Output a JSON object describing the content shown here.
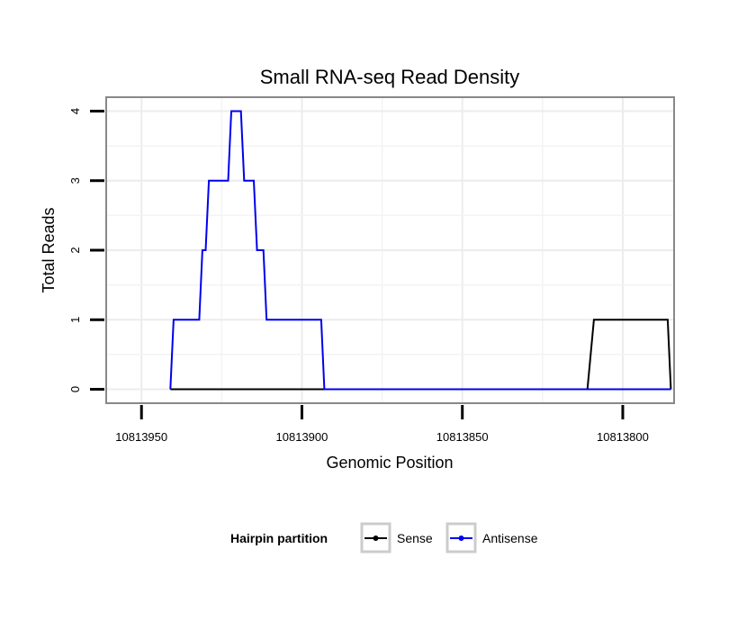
{
  "chart_data": {
    "type": "line",
    "title": "Small RNA-seq Read Density",
    "xlabel": "Genomic Position",
    "ylabel": "Total Reads",
    "xlim": [
      10813961,
      10813784
    ],
    "ylim": [
      -0.2,
      4.2
    ],
    "x_reversed": true,
    "x_ticks": [
      10813950,
      10813900,
      10813850,
      10813800
    ],
    "x_tick_labels": [
      "10813950",
      "10813900",
      "10813850",
      "10813800"
    ],
    "y_ticks": [
      0,
      1,
      2,
      3,
      4
    ],
    "y_tick_labels": [
      "0",
      "1",
      "2",
      "3",
      "4"
    ],
    "grid": true,
    "legend": {
      "title": "Hairpin partition",
      "position": "bottom",
      "entries": [
        "Sense",
        "Antisense"
      ]
    },
    "series": [
      {
        "name": "Sense",
        "color": "#000000",
        "x": [
          10813941,
          10813811,
          10813809,
          10813786,
          10813785
        ],
        "y": [
          0,
          0,
          1,
          1,
          0
        ]
      },
      {
        "name": "Antisense",
        "color": "#0000ee",
        "x": [
          10813941,
          10813940,
          10813932,
          10813931,
          10813930,
          10813929,
          10813927,
          10813923,
          10813922,
          10813919,
          10813918,
          10813915,
          10813914,
          10813912,
          10813911,
          10813909,
          10813908,
          10813906,
          10813905,
          10813894,
          10813893,
          10813811,
          10813785
        ],
        "y": [
          0,
          1,
          1,
          2,
          2,
          3,
          3,
          3,
          4,
          4,
          3,
          3,
          2,
          2,
          1,
          1,
          1,
          1,
          1,
          1,
          0,
          0,
          0
        ]
      }
    ]
  }
}
